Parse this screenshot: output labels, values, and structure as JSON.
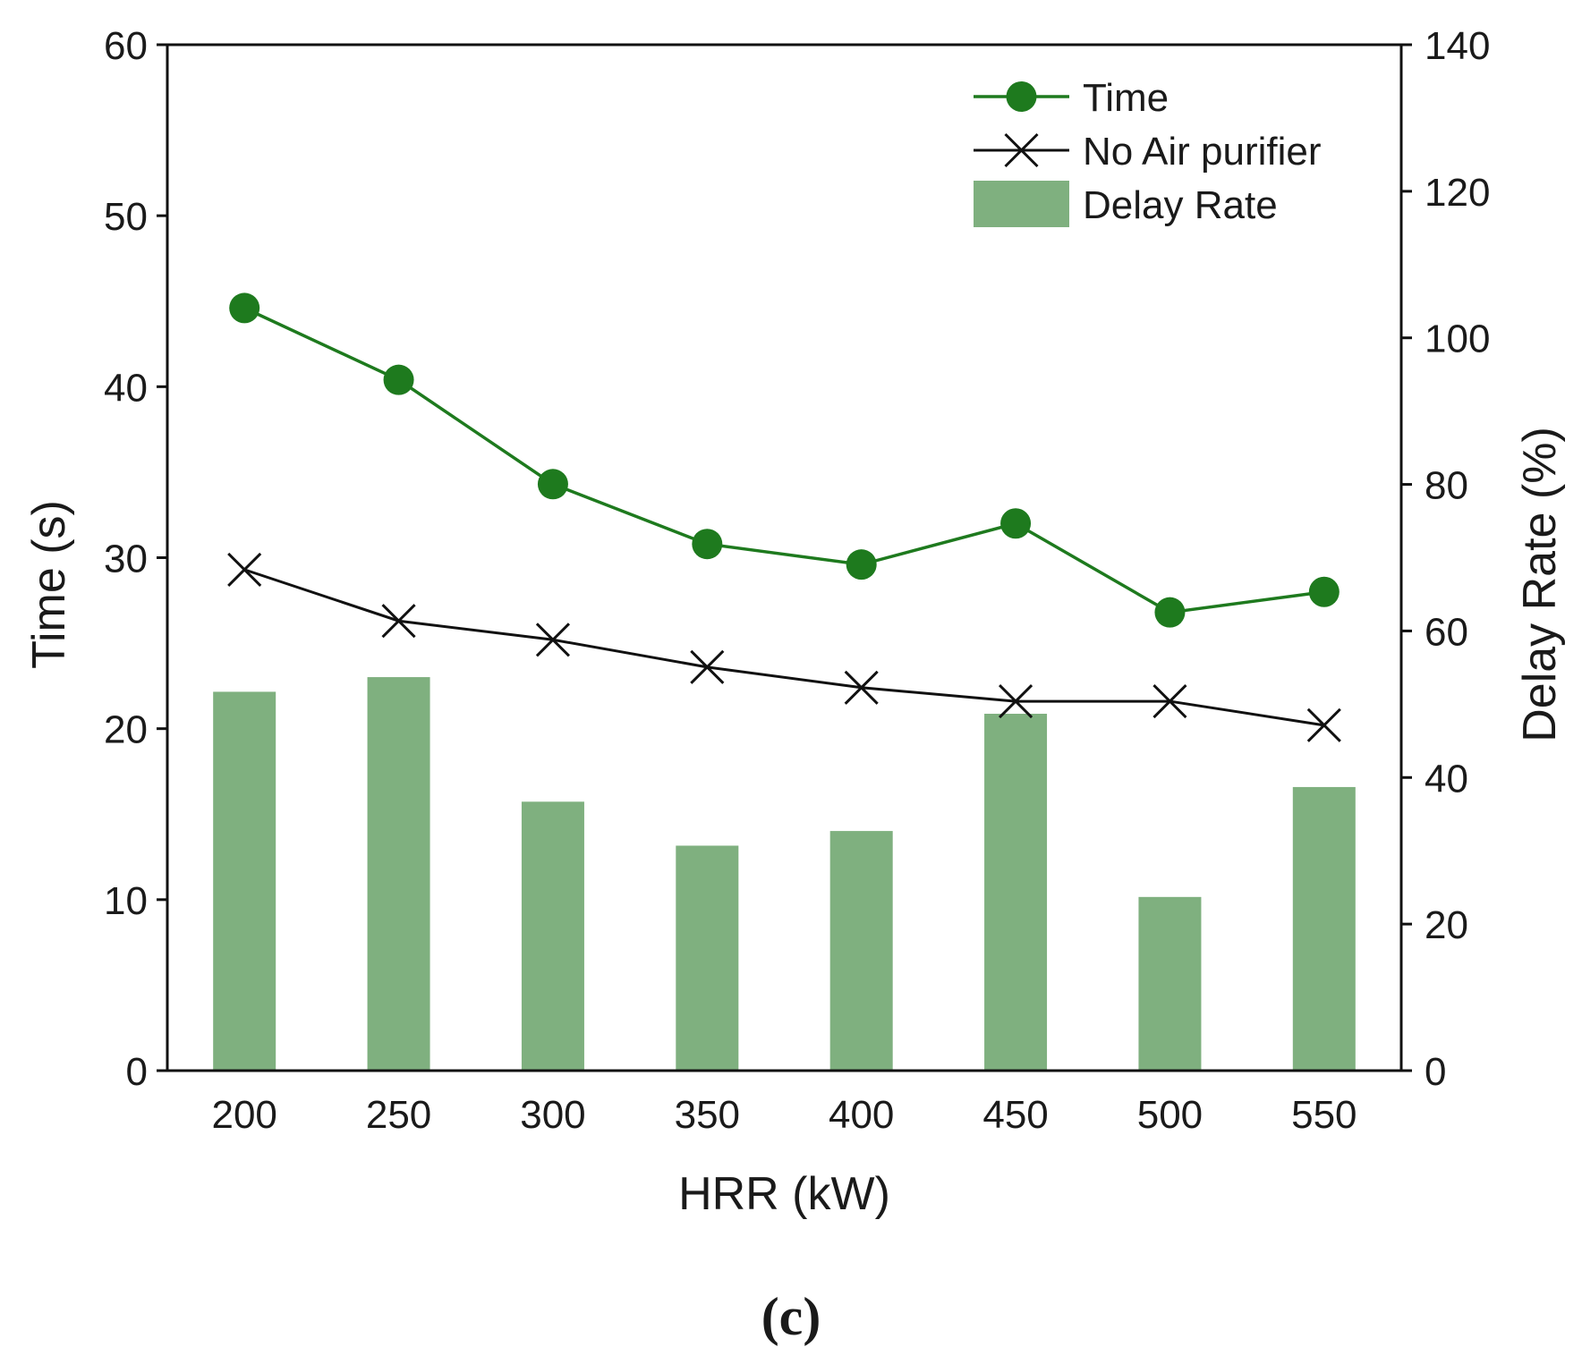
{
  "panel_label": "(c)",
  "colors": {
    "time": "#1e7a1e",
    "no_purifier": "#111111",
    "delay_bar": "#7fb07f",
    "axis": "#111111"
  },
  "chart_data": {
    "type": "bar+line",
    "title": "",
    "xlabel": "HRR (kW)",
    "ylabel_left": "Time (s)",
    "ylabel_right": "Delay Rate (%)",
    "categories": [
      "200",
      "250",
      "300",
      "350",
      "400",
      "450",
      "500",
      "550"
    ],
    "ylim_left": [
      0,
      60
    ],
    "ylim_right": [
      0,
      140
    ],
    "yticks_left": [
      "0",
      "10",
      "20",
      "30",
      "40",
      "50",
      "60"
    ],
    "yticks_right": [
      "0",
      "20",
      "40",
      "60",
      "80",
      "100",
      "120",
      "140"
    ],
    "grid": false,
    "legend_position": "top-right",
    "series": [
      {
        "name": "Time",
        "type": "line",
        "marker": "circle",
        "axis": "left",
        "values": [
          44.6,
          40.4,
          34.3,
          30.8,
          29.6,
          32.0,
          26.8,
          28.0
        ]
      },
      {
        "name": "No Air purifier",
        "type": "line",
        "marker": "x",
        "axis": "left",
        "values": [
          29.3,
          26.3,
          25.2,
          23.6,
          22.4,
          21.6,
          21.6,
          20.2
        ]
      },
      {
        "name": "Delay Rate",
        "type": "bar",
        "axis": "right",
        "values": [
          51.7,
          53.7,
          36.7,
          30.7,
          32.7,
          48.7,
          23.7,
          38.7
        ]
      }
    ]
  }
}
